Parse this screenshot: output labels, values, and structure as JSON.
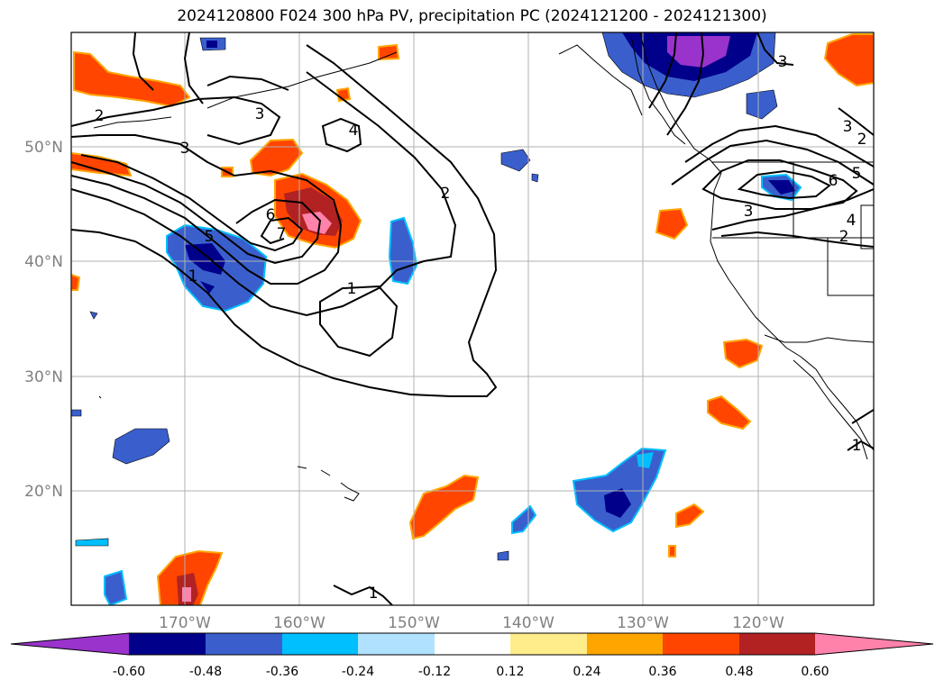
{
  "title": "2024120800 F024 300 hPa PV, precipitation PC (2024121200 - 2024121300)",
  "lat_labels": [
    "50°N",
    "40°N",
    "30°N",
    "20°N"
  ],
  "lon_labels": [
    "170°W",
    "160°W",
    "150°W",
    "140°W",
    "130°W",
    "120°W"
  ],
  "colorbar": {
    "ticks": [
      "-0.60",
      "-0.48",
      "-0.36",
      "-0.24",
      "-0.12",
      "0.12",
      "0.24",
      "0.36",
      "0.48",
      "0.60"
    ],
    "colors": [
      "#9933cc",
      "#00008b",
      "#3a5fcd",
      "#00bfff",
      "#b0e2ff",
      "#ffffff",
      "#ffec8b",
      "#ffa500",
      "#ff4500",
      "#b22222",
      "#ff82ab"
    ]
  },
  "contour_labels": [
    "2",
    "3",
    "3",
    "4",
    "2",
    "6",
    "7",
    "5",
    "1",
    "1",
    "1",
    "3",
    "6",
    "5",
    "3",
    "4",
    "2",
    "1",
    "2",
    "3"
  ]
}
